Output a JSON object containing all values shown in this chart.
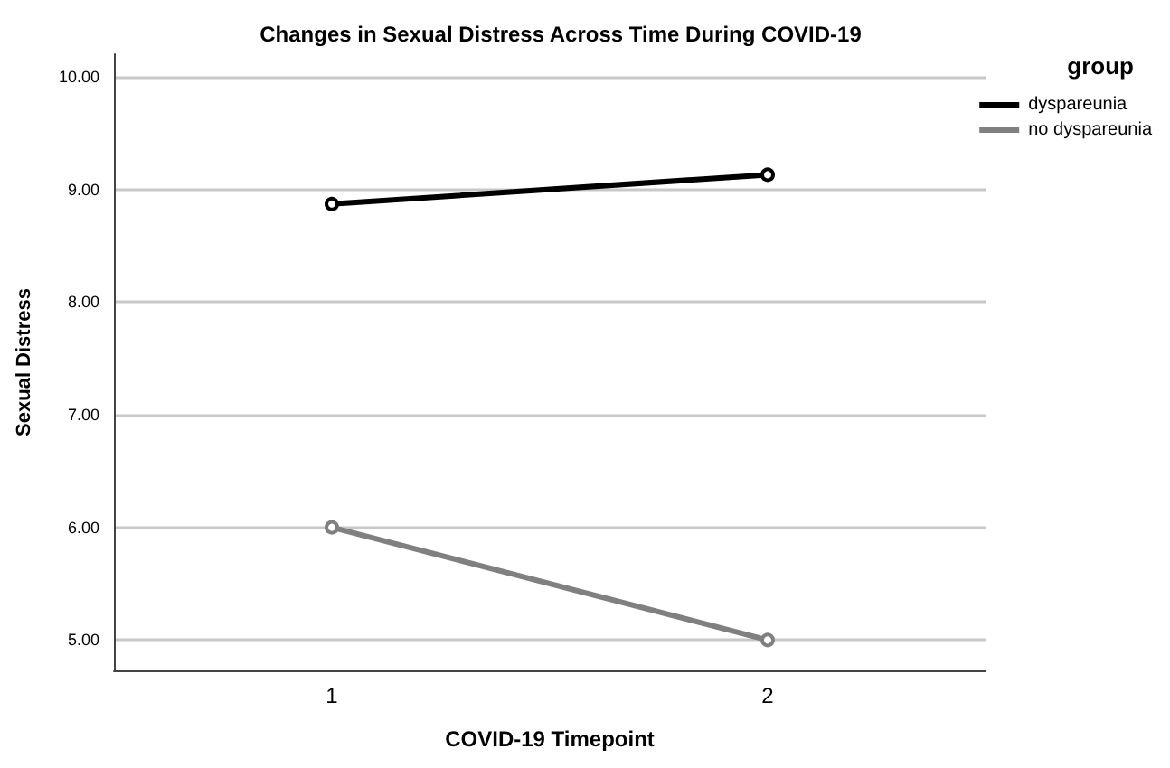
{
  "chart_data": {
    "type": "line",
    "title": "Changes in Sexual Distress Across Time During COVID-19",
    "xlabel": "COVID-19 Timepoint",
    "ylabel": "Sexual Distress",
    "legend_title": "group",
    "categories": [
      "1",
      "2"
    ],
    "series": [
      {
        "name": "dyspareunia",
        "color": "#000000",
        "values": [
          8.87,
          9.13
        ]
      },
      {
        "name": "no dyspareunia",
        "color": "#808080",
        "values": [
          6.0,
          5.0
        ]
      }
    ],
    "ylim": [
      4.73,
      10.2
    ],
    "yticks": [
      {
        "value": 5,
        "label": "5.00"
      },
      {
        "value": 6,
        "label": "6.00"
      },
      {
        "value": 7,
        "label": "7.00"
      },
      {
        "value": 8,
        "label": "8.00"
      },
      {
        "value": 9,
        "label": "9.00"
      },
      {
        "value": 10,
        "label": "10.00"
      }
    ],
    "grid": "y",
    "legend": "top right",
    "marker": "circle",
    "line_style": "solid"
  }
}
